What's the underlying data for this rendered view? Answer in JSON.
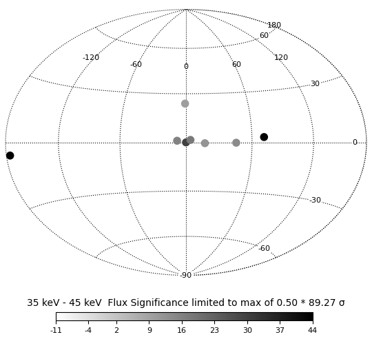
{
  "chart_data": {
    "type": "sky_map",
    "title": "35 keV - 45 keV  Flux Significance limited to max of 0.50 * 89.27 σ",
    "xlim": [
      -180,
      180
    ],
    "ylim": [
      -90,
      90
    ],
    "xticks": [
      -120,
      -60,
      0,
      60,
      120,
      180
    ],
    "yticks": [
      -90,
      -60,
      -30,
      0,
      30,
      60
    ],
    "grid": true,
    "sources": {
      "lon": [
        -175.4,
        71.3,
        0.0,
        45.4,
        -0.9,
        4.0,
        -8.0,
        17.0
      ],
      "lat": [
        -5.8,
        3.1,
        0.0,
        -0.2,
        23.8,
        1.5,
        1.0,
        -0.5
      ],
      "significance": [
        44,
        44,
        30,
        14,
        10,
        18,
        16,
        12
      ]
    },
    "colorbar": {
      "range": [
        -11,
        44
      ],
      "ticks": [
        -11,
        -4,
        2,
        9,
        16,
        23,
        30,
        37,
        44
      ]
    }
  }
}
